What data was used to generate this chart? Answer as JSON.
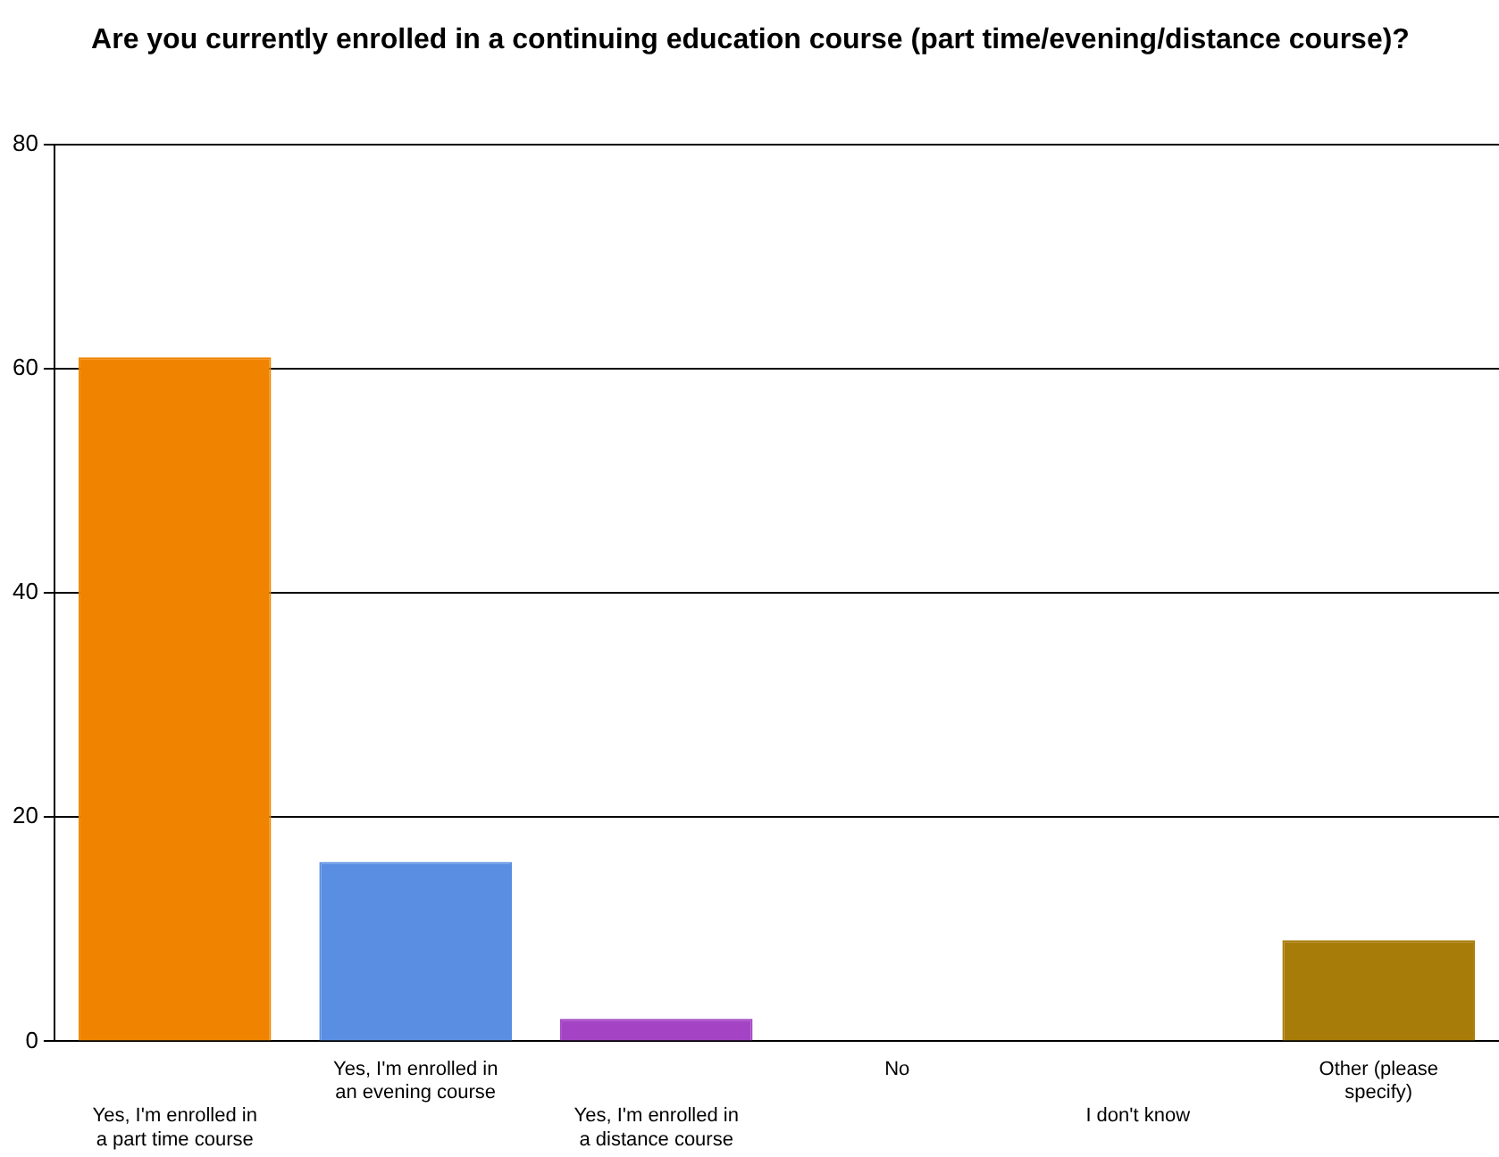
{
  "chart_data": {
    "type": "bar",
    "title": "Are you currently enrolled in a continuing education course (part time/evening/distance course)?",
    "categories": [
      "Yes, I'm enrolled in a part time course",
      "Yes, I'm enrolled in an evening course",
      "Yes, I'm enrolled in a distance course",
      "No",
      "I don't know",
      "Other (please specify)"
    ],
    "values": [
      61,
      16,
      2,
      0,
      0,
      9
    ],
    "colors": [
      "#f08400",
      "#5a8ee2",
      "#a444c4",
      "#3a9a3a",
      "#c03030",
      "#a87c08"
    ],
    "ylim": [
      0,
      80
    ],
    "yticks": [
      0,
      20,
      40,
      60,
      80
    ],
    "grid": "y",
    "legend": false
  }
}
